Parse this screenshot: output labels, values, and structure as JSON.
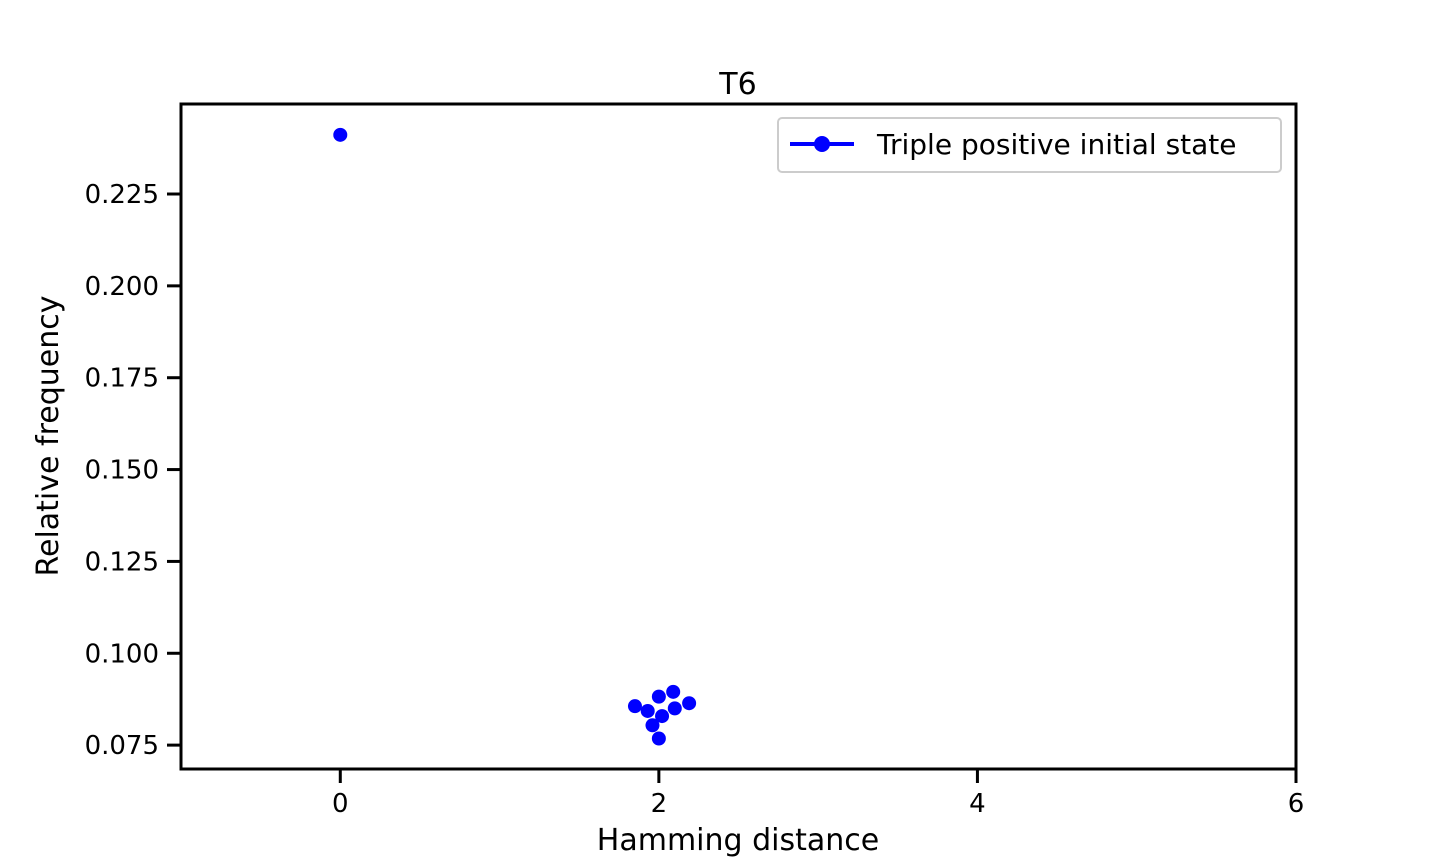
{
  "chart_data": {
    "type": "scatter",
    "title": "T6",
    "xlabel": "Hamming distance",
    "ylabel": "Relative frequency",
    "xlim": [
      -1,
      6
    ],
    "ylim": [
      0.0685,
      0.2495
    ],
    "xticks": [
      0,
      2,
      4,
      6
    ],
    "xtick_labels": [
      "0",
      "2",
      "4",
      "6"
    ],
    "yticks": [
      0.075,
      0.1,
      0.125,
      0.15,
      0.175,
      0.2,
      0.225
    ],
    "ytick_labels": [
      "0.075",
      "0.100",
      "0.125",
      "0.150",
      "0.175",
      "0.200",
      "0.225"
    ],
    "grid": false,
    "legend": {
      "position": "top-right",
      "entries": [
        "Triple positive initial state"
      ]
    },
    "series": [
      {
        "name": "Triple positive initial state",
        "color": "#0000ff",
        "marker": "circle",
        "points": [
          {
            "x": 0.0,
            "y": 0.2411
          },
          {
            "x": 1.85,
            "y": 0.0856
          },
          {
            "x": 1.93,
            "y": 0.0843
          },
          {
            "x": 1.96,
            "y": 0.0804
          },
          {
            "x": 2.0,
            "y": 0.0882
          },
          {
            "x": 2.0,
            "y": 0.0768
          },
          {
            "x": 2.02,
            "y": 0.0829
          },
          {
            "x": 2.09,
            "y": 0.0895
          },
          {
            "x": 2.1,
            "y": 0.085
          },
          {
            "x": 2.19,
            "y": 0.0864
          }
        ]
      }
    ]
  }
}
